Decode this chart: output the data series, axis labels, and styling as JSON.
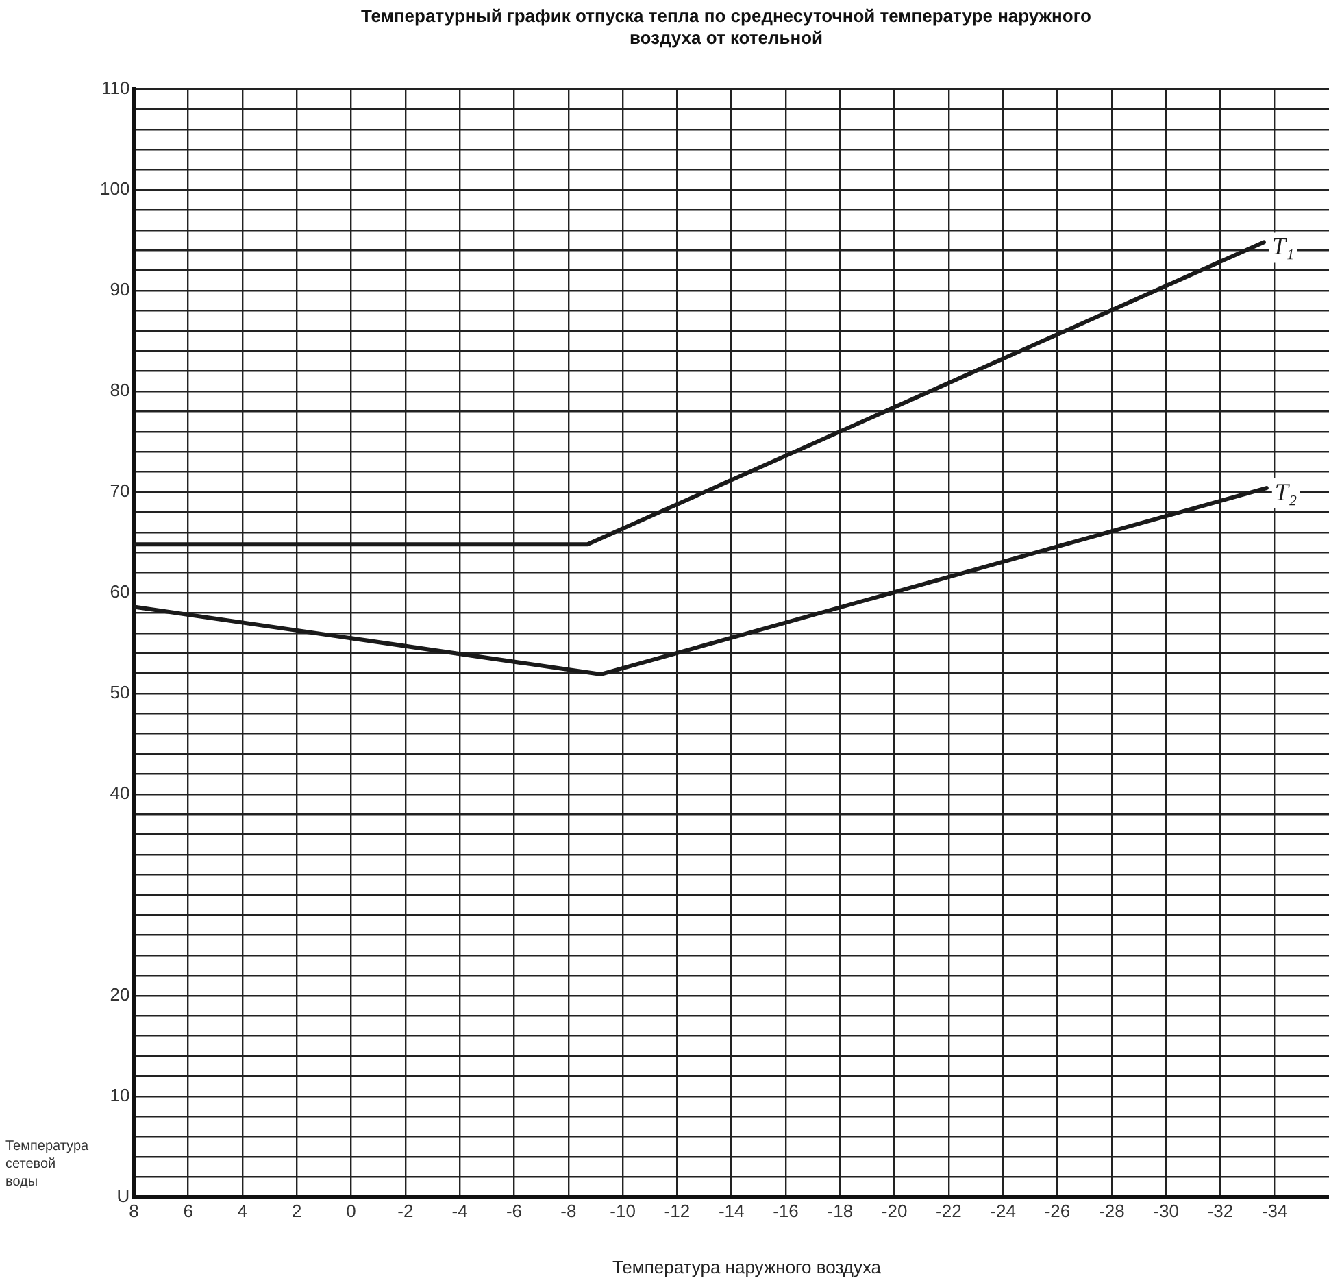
{
  "chart_data": {
    "type": "line",
    "title": "Температурный график отпуска тепла по среднесуточной температуре наружного воздуха от котельной",
    "xlabel": "Температура наружного воздуха",
    "ylabel": "Температура сетевой воды",
    "xlim": [
      8,
      -36
    ],
    "xticks": [
      8,
      6,
      4,
      2,
      0,
      -2,
      -4,
      -6,
      -8,
      -10,
      -12,
      -14,
      -16,
      -18,
      -20,
      -22,
      -24,
      -26,
      -28,
      -30,
      -32,
      -34
    ],
    "ylim": [
      0,
      110
    ],
    "yticks": [
      110,
      {
        "value": 108,
        "label": null
      },
      {
        "value": 106,
        "label": null
      },
      {
        "value": 104,
        "label": null
      },
      {
        "value": 102,
        "label": null
      },
      100,
      {
        "value": 98,
        "label": null
      },
      {
        "value": 96,
        "label": null
      },
      {
        "value": 94,
        "label": null
      },
      {
        "value": 92,
        "label": null
      },
      90,
      {
        "value": 88,
        "label": null
      },
      {
        "value": 86,
        "label": null
      },
      {
        "value": 84,
        "label": null
      },
      {
        "value": 82,
        "label": null
      },
      80,
      {
        "value": 78,
        "label": null
      },
      {
        "value": 76,
        "label": null
      },
      {
        "value": 74,
        "label": null
      },
      {
        "value": 72,
        "label": null
      },
      70,
      {
        "value": 68,
        "label": null
      },
      {
        "value": 66,
        "label": null
      },
      {
        "value": 64,
        "label": null
      },
      {
        "value": 62,
        "label": null
      },
      60,
      {
        "value": 58,
        "label": null
      },
      {
        "value": 56,
        "label": null
      },
      {
        "value": 54,
        "label": null
      },
      {
        "value": 52,
        "label": null
      },
      50,
      {
        "value": 48,
        "label": null
      },
      {
        "value": 46,
        "label": null
      },
      {
        "value": 44,
        "label": null
      },
      {
        "value": 42,
        "label": null
      },
      40,
      {
        "value": 38,
        "label": null
      },
      {
        "value": 36,
        "label": null
      },
      {
        "value": 34,
        "label": null
      },
      {
        "value": 32,
        "label": null
      },
      {
        "value": 30,
        "label": null
      },
      {
        "value": 28,
        "label": null
      },
      {
        "value": 26,
        "label": null
      },
      {
        "value": 24,
        "label": null
      },
      {
        "value": 22,
        "label": null
      },
      20,
      {
        "value": 18,
        "label": null
      },
      {
        "value": 16,
        "label": null
      },
      {
        "value": 14,
        "label": null
      },
      {
        "value": 12,
        "label": null
      },
      10,
      {
        "value": 8,
        "label": null
      },
      {
        "value": 6,
        "label": null
      },
      {
        "value": 4,
        "label": null
      },
      {
        "value": 2,
        "label": null
      },
      {
        "value": 0,
        "label": "U"
      }
    ],
    "grid": true,
    "legend": false,
    "marker": "none",
    "line_style": "solid",
    "series": [
      {
        "name": "T₁",
        "color": "#1a1a1a",
        "x": [
          8,
          -8.7,
          -33.6
        ],
        "values": [
          64.8,
          64.8,
          94.8
        ]
      },
      {
        "name": "T₂",
        "color": "#1a1a1a",
        "x": [
          8,
          -9.2,
          -33.7
        ],
        "values": [
          58.6,
          51.9,
          70.4
        ]
      }
    ]
  }
}
